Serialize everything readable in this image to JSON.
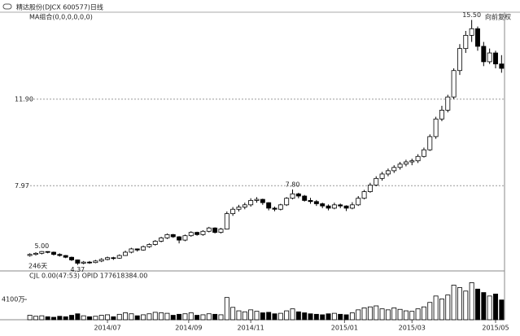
{
  "header": {
    "title": "精达股份(DJCX 600577)日线",
    "ma_label": "MA组合(0,0,0,0,0,0)",
    "adjust": "向前复权",
    "days": "246天",
    "volume_indicator": "CJL  0.00(47:53)   OPID  177618384.00"
  },
  "chart_data": {
    "type": "candlestick",
    "ylim": [
      4.1,
      15.85
    ],
    "yticks": [
      7.97,
      {
        "value": 11.9,
        "label": "11.90"
      }
    ],
    "vlim": [
      0,
      79000000
    ],
    "vticks": [
      {
        "value": 41000000,
        "label": "4100万"
      }
    ],
    "xticks": [
      {
        "value": 13,
        "label": "2014/07"
      },
      {
        "value": 26.6,
        "label": "2014/09"
      },
      {
        "value": 37,
        "label": "2014/11"
      },
      {
        "value": 52.7,
        "label": "2015/01"
      },
      {
        "value": 64,
        "label": "2015/03"
      },
      {
        "value": 78,
        "label": "2015/05"
      }
    ],
    "grid": true,
    "annotations": [
      {
        "label": "5.00",
        "value": 5.0
      },
      {
        "label": "4.37",
        "value": 4.37
      },
      {
        "label": "7.80",
        "value": 7.8
      },
      {
        "label": "15.50",
        "value": 15.5
      }
    ],
    "candles": [
      [
        4.8,
        4.9,
        4.75,
        4.85
      ],
      [
        4.85,
        4.95,
        4.8,
        4.9
      ],
      [
        4.9,
        5.0,
        4.85,
        4.98
      ],
      [
        4.98,
        4.99,
        4.9,
        4.95
      ],
      [
        4.95,
        4.98,
        4.8,
        4.85
      ],
      [
        4.85,
        4.9,
        4.75,
        4.8
      ],
      [
        4.8,
        4.82,
        4.68,
        4.72
      ],
      [
        4.72,
        4.75,
        4.55,
        4.6
      ],
      [
        4.6,
        4.62,
        4.37,
        4.45
      ],
      [
        4.45,
        4.55,
        4.4,
        4.5
      ],
      [
        4.5,
        4.55,
        4.42,
        4.48
      ],
      [
        4.48,
        4.6,
        4.45,
        4.55
      ],
      [
        4.55,
        4.68,
        4.5,
        4.62
      ],
      [
        4.62,
        4.75,
        4.58,
        4.7
      ],
      [
        4.7,
        4.74,
        4.6,
        4.68
      ],
      [
        4.68,
        4.85,
        4.65,
        4.8
      ],
      [
        4.8,
        5.02,
        4.78,
        4.95
      ],
      [
        4.95,
        5.15,
        4.9,
        5.1
      ],
      [
        5.1,
        5.12,
        4.98,
        5.05
      ],
      [
        5.05,
        5.25,
        5.02,
        5.2
      ],
      [
        5.2,
        5.35,
        5.15,
        5.3
      ],
      [
        5.3,
        5.5,
        5.25,
        5.45
      ],
      [
        5.45,
        5.65,
        5.4,
        5.6
      ],
      [
        5.6,
        5.8,
        5.55,
        5.75
      ],
      [
        5.75,
        5.78,
        5.6,
        5.65
      ],
      [
        5.65,
        5.68,
        5.35,
        5.5
      ],
      [
        5.5,
        5.75,
        5.45,
        5.7
      ],
      [
        5.7,
        5.9,
        5.65,
        5.85
      ],
      [
        5.85,
        5.88,
        5.7,
        5.75
      ],
      [
        5.75,
        5.95,
        5.7,
        5.9
      ],
      [
        5.9,
        6.1,
        5.85,
        6.05
      ],
      [
        6.05,
        6.08,
        5.8,
        5.85
      ],
      [
        5.85,
        6.05,
        5.8,
        6.0
      ],
      [
        6.0,
        6.8,
        5.98,
        6.7
      ],
      [
        6.7,
        7.0,
        6.6,
        6.9
      ],
      [
        6.9,
        7.1,
        6.8,
        7.0
      ],
      [
        7.0,
        7.2,
        6.9,
        7.1
      ],
      [
        7.1,
        7.4,
        7.02,
        7.3
      ],
      [
        7.3,
        7.45,
        7.2,
        7.35
      ],
      [
        7.35,
        7.38,
        7.1,
        7.2
      ],
      [
        7.2,
        7.22,
        6.85,
        6.95
      ],
      [
        6.95,
        7.02,
        6.81,
        6.9
      ],
      [
        6.9,
        7.15,
        6.85,
        7.1
      ],
      [
        7.1,
        7.45,
        7.05,
        7.4
      ],
      [
        7.4,
        7.8,
        7.35,
        7.6
      ],
      [
        7.6,
        7.65,
        7.4,
        7.5
      ],
      [
        7.5,
        7.55,
        7.25,
        7.3
      ],
      [
        7.3,
        7.42,
        7.15,
        7.25
      ],
      [
        7.25,
        7.32,
        7.05,
        7.15
      ],
      [
        7.15,
        7.2,
        6.95,
        7.05
      ],
      [
        7.05,
        7.12,
        6.85,
        6.95
      ],
      [
        6.95,
        7.2,
        6.9,
        7.1
      ],
      [
        7.1,
        7.16,
        6.95,
        7.05
      ],
      [
        7.05,
        7.08,
        6.82,
        6.95
      ],
      [
        6.95,
        7.22,
        6.9,
        7.1
      ],
      [
        7.1,
        7.5,
        7.05,
        7.4
      ],
      [
        7.4,
        7.78,
        7.35,
        7.7
      ],
      [
        7.7,
        8.1,
        7.65,
        8.0
      ],
      [
        8.0,
        8.4,
        7.95,
        8.3
      ],
      [
        8.3,
        8.6,
        8.2,
        8.5
      ],
      [
        8.5,
        8.75,
        8.4,
        8.65
      ],
      [
        8.65,
        8.9,
        8.55,
        8.8
      ],
      [
        8.8,
        9.05,
        8.7,
        8.95
      ],
      [
        8.95,
        9.15,
        8.85,
        9.05
      ],
      [
        9.05,
        9.2,
        8.9,
        9.1
      ],
      [
        9.1,
        9.4,
        9.0,
        9.3
      ],
      [
        9.3,
        9.7,
        9.25,
        9.6
      ],
      [
        9.6,
        10.3,
        9.55,
        10.2
      ],
      [
        10.2,
        11.1,
        10.1,
        11.0
      ],
      [
        11.0,
        11.6,
        10.9,
        11.4
      ],
      [
        11.4,
        12.1,
        11.3,
        12.0
      ],
      [
        12.0,
        13.3,
        11.9,
        13.2
      ],
      [
        13.2,
        14.4,
        13.0,
        14.2
      ],
      [
        14.2,
        15.0,
        14.0,
        14.8
      ],
      [
        14.8,
        15.5,
        14.5,
        15.1
      ],
      [
        15.1,
        15.2,
        14.1,
        14.3
      ],
      [
        14.3,
        14.5,
        13.4,
        13.6
      ],
      [
        13.6,
        14.2,
        13.5,
        14.0
      ],
      [
        14.0,
        14.1,
        13.3,
        13.5
      ],
      [
        13.5,
        13.9,
        13.1,
        13.3
      ]
    ],
    "volume": [
      9000000,
      7000000,
      8000000,
      6000000,
      5000000,
      7000000,
      6000000,
      9000000,
      12000000,
      8000000,
      6000000,
      7000000,
      9000000,
      10000000,
      6000000,
      11000000,
      14000000,
      12000000,
      8000000,
      10000000,
      12000000,
      15000000,
      14000000,
      13000000,
      9000000,
      11000000,
      12000000,
      14000000,
      9000000,
      10000000,
      12000000,
      11000000,
      10000000,
      45000000,
      25000000,
      18000000,
      16000000,
      20000000,
      17000000,
      14000000,
      15000000,
      12000000,
      13000000,
      18000000,
      22000000,
      16000000,
      14000000,
      12000000,
      11000000,
      10000000,
      12000000,
      13000000,
      11000000,
      10000000,
      14000000,
      20000000,
      24000000,
      26000000,
      28000000,
      22000000,
      20000000,
      24000000,
      21000000,
      18000000,
      17000000,
      22000000,
      26000000,
      35000000,
      48000000,
      42000000,
      50000000,
      70000000,
      65000000,
      58000000,
      75000000,
      62000000,
      55000000,
      48000000,
      52000000,
      40000000
    ]
  }
}
